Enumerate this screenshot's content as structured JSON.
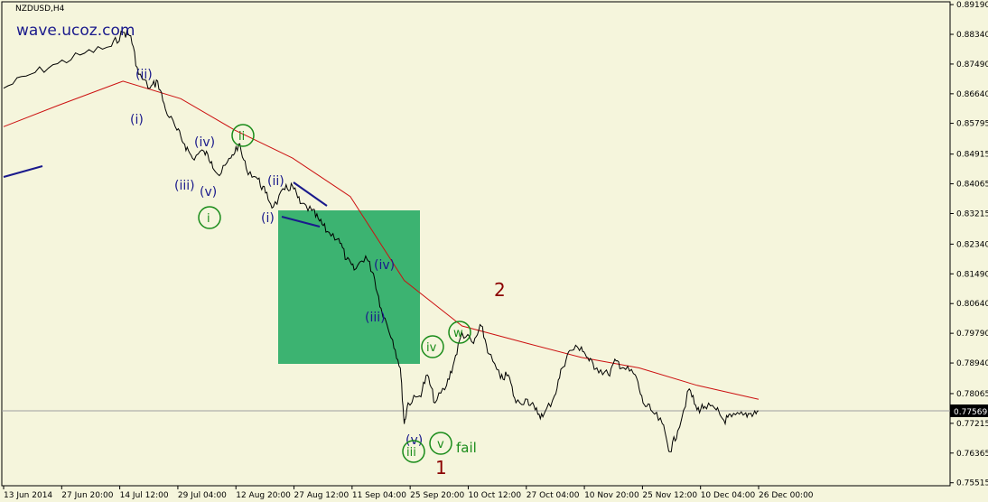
{
  "window": {
    "symbol_label": "NZDUSD,H4",
    "watermark": "wave.ucoz.com"
  },
  "colors": {
    "background": "#f5f5dc",
    "price_line": "#000000",
    "moving_average": "#cc1111",
    "wave_blue": "#1a1a8c",
    "wave_green": "#1a8c1a",
    "wave_dark_red": "#8b0000",
    "highlight_box": "#3cb371",
    "current_price_bg": "#000000"
  },
  "chart_data": {
    "type": "line",
    "title": "NZDUSD,H4",
    "x_ticks": [
      "13 Jun 2014",
      "27 Jun 20:00",
      "14 Jul 12:00",
      "29 Jul 04:00",
      "12 Aug 20:00",
      "27 Aug 12:00",
      "11 Sep 04:00",
      "25 Sep 20:00",
      "10 Oct 12:00",
      "27 Oct 04:00",
      "10 Nov 20:00",
      "25 Nov 12:00",
      "10 Dec 04:00",
      "26 Dec 00:00"
    ],
    "y_ticks": [
      "0.89190",
      "0.88340",
      "0.87490",
      "0.86640",
      "0.85795",
      "0.84915",
      "0.84065",
      "0.83215",
      "0.82340",
      "0.81490",
      "0.80640",
      "0.79790",
      "0.78940",
      "0.78065",
      "0.77215",
      "0.76365",
      "0.75515"
    ],
    "ylim": [
      0.7543,
      0.8927
    ],
    "current_price": "0.77569",
    "series": [
      {
        "name": "NZDUSD",
        "x": [
          "13 Jun 2014",
          "20 Jun 2014",
          "27 Jun 2014",
          "4 Jul 2014",
          "11 Jul 2014",
          "14 Jul 2014",
          "16 Jul 2014",
          "18 Jul 2014",
          "21 Jul 2014",
          "23 Jul 2014",
          "25 Jul 2014",
          "28 Jul 2014",
          "30 Jul 2014",
          "1 Aug 2014",
          "4 Aug 2014",
          "6 Aug 2014",
          "8 Aug 2014",
          "11 Aug 2014",
          "13 Aug 2014",
          "15 Aug 2014",
          "18 Aug 2014",
          "20 Aug 2014",
          "22 Aug 2014",
          "25 Aug 2014",
          "27 Aug 2014",
          "29 Aug 2014",
          "1 Sep 2014",
          "3 Sep 2014",
          "5 Sep 2014",
          "8 Sep 2014",
          "10 Sep 2014",
          "12 Sep 2014",
          "15 Sep 2014",
          "17 Sep 2014",
          "19 Sep 2014",
          "22 Sep 2014",
          "24 Sep 2014",
          "25 Sep 2014",
          "26 Sep 2014",
          "29 Sep 2014",
          "1 Oct 2014",
          "3 Oct 2014",
          "6 Oct 2014",
          "8 Oct 2014",
          "10 Oct 2014",
          "13 Oct 2014",
          "15 Oct 2014",
          "17 Oct 2014",
          "20 Oct 2014",
          "22 Oct 2014",
          "24 Oct 2014",
          "27 Oct 2014",
          "29 Oct 2014",
          "31 Oct 2014",
          "3 Nov 2014",
          "5 Nov 2014",
          "7 Nov 2014",
          "10 Nov 2014",
          "12 Nov 2014",
          "14 Nov 2014",
          "17 Nov 2014",
          "19 Nov 2014",
          "21 Nov 2014",
          "24 Nov 2014",
          "26 Nov 2014",
          "28 Nov 2014",
          "1 Dec 2014",
          "3 Dec 2014",
          "5 Dec 2014",
          "8 Dec 2014",
          "10 Dec 2014",
          "12 Dec 2014",
          "15 Dec 2014",
          "17 Dec 2014",
          "19 Dec 2014",
          "22 Dec 2014",
          "24 Dec 2014",
          "26 Dec 2014"
        ],
        "values": [
          0.868,
          0.872,
          0.875,
          0.878,
          0.88,
          0.884,
          0.883,
          0.872,
          0.868,
          0.87,
          0.862,
          0.856,
          0.852,
          0.848,
          0.85,
          0.847,
          0.843,
          0.848,
          0.852,
          0.845,
          0.842,
          0.838,
          0.834,
          0.839,
          0.84,
          0.835,
          0.833,
          0.83,
          0.827,
          0.825,
          0.819,
          0.816,
          0.82,
          0.815,
          0.805,
          0.796,
          0.788,
          0.772,
          0.778,
          0.78,
          0.786,
          0.778,
          0.783,
          0.79,
          0.798,
          0.795,
          0.8,
          0.792,
          0.785,
          0.786,
          0.778,
          0.779,
          0.776,
          0.774,
          0.78,
          0.788,
          0.793,
          0.794,
          0.79,
          0.788,
          0.786,
          0.79,
          0.788,
          0.786,
          0.778,
          0.776,
          0.772,
          0.764,
          0.77,
          0.782,
          0.776,
          0.777,
          0.776,
          0.773,
          0.774,
          0.7745,
          0.775,
          0.7757
        ]
      },
      {
        "name": "MA",
        "x": [
          "13 Jun 2014",
          "27 Jun 2014",
          "14 Jul 2014",
          "29 Jul 2014",
          "12 Aug 2014",
          "27 Aug 2014",
          "11 Sep 2014",
          "25 Sep 2014",
          "10 Oct 2014",
          "27 Oct 2014",
          "10 Nov 2014",
          "25 Nov 2014",
          "10 Dec 2014",
          "26 Dec 2014"
        ],
        "values": [
          0.857,
          0.863,
          0.87,
          0.865,
          0.856,
          0.848,
          0.837,
          0.813,
          0.8,
          0.795,
          0.791,
          0.788,
          0.783,
          0.779
        ]
      }
    ],
    "annotations": [
      {
        "label": "(ii)",
        "color": "blue"
      },
      {
        "label": "(i)",
        "color": "blue"
      },
      {
        "label": "(iv)",
        "color": "blue"
      },
      {
        "label": "(iii)",
        "color": "blue"
      },
      {
        "label": "(v)",
        "color": "blue"
      },
      {
        "label": "ii",
        "color": "green",
        "circled": true
      },
      {
        "label": "i",
        "color": "green",
        "circled": true
      },
      {
        "label": "(ii)",
        "color": "blue"
      },
      {
        "label": "(i)",
        "color": "blue"
      },
      {
        "label": "(iv)",
        "color": "blue"
      },
      {
        "label": "(iii)",
        "color": "blue"
      },
      {
        "label": "(v)",
        "color": "blue"
      },
      {
        "label": "iii",
        "color": "green",
        "circled": true
      },
      {
        "label": "iv",
        "color": "green",
        "circled": true
      },
      {
        "label": "v",
        "color": "green",
        "circled": true
      },
      {
        "label": "fail",
        "color": "green"
      },
      {
        "label": "w",
        "color": "green",
        "circled": true
      },
      {
        "label": "1",
        "color": "dark-red"
      },
      {
        "label": "2",
        "color": "dark-red"
      }
    ]
  }
}
